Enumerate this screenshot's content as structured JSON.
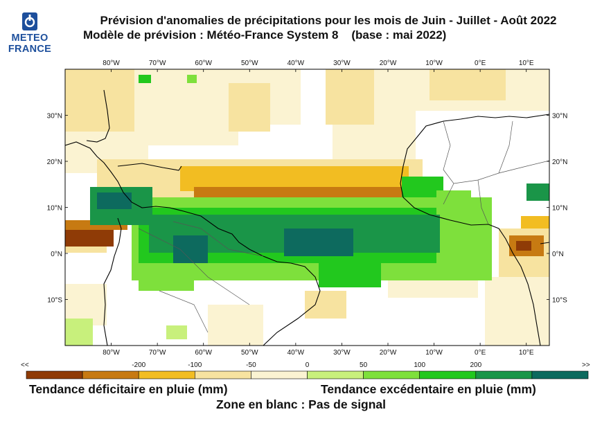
{
  "header": {
    "title": "Prévision d'anomalies de précipitations pour les mois de Juin - Juillet - Août 2022",
    "subtitle": "Modèle de prévision : Météo-France System 8    (base : mai 2022)",
    "logo_line1": "METEO",
    "logo_line2": "FRANCE",
    "logo_icon": "meteo-france-logo-icon"
  },
  "map": {
    "lon_labels": [
      "80°W",
      "70°W",
      "60°W",
      "50°W",
      "40°W",
      "30°W",
      "20°W",
      "10°W",
      "0°E",
      "10°E"
    ],
    "lat_labels": [
      "30°N",
      "20°N",
      "10°N",
      "0°N",
      "10°S"
    ],
    "lon_range": [
      -90,
      15
    ],
    "lat_range": [
      -20,
      40
    ]
  },
  "legend": {
    "left_arrow": "<<",
    "right_arrow": ">>",
    "ticks": [
      "-200",
      "-100",
      "-50",
      "0",
      "50",
      "100",
      "200"
    ],
    "colors": [
      "#8f3b06",
      "#c77a12",
      "#f2bd22",
      "#f7e3a0",
      "#fbf3d2",
      "#c8f07c",
      "#7ee03c",
      "#22c81e",
      "#1a9548",
      "#0d6a5e"
    ],
    "text_deficit": "Tendance déficitaire en pluie  (mm)",
    "text_excess": "Tendance excédentaire en pluie   (mm)",
    "text_nosignal": "Zone en blanc : Pas de signal"
  }
}
